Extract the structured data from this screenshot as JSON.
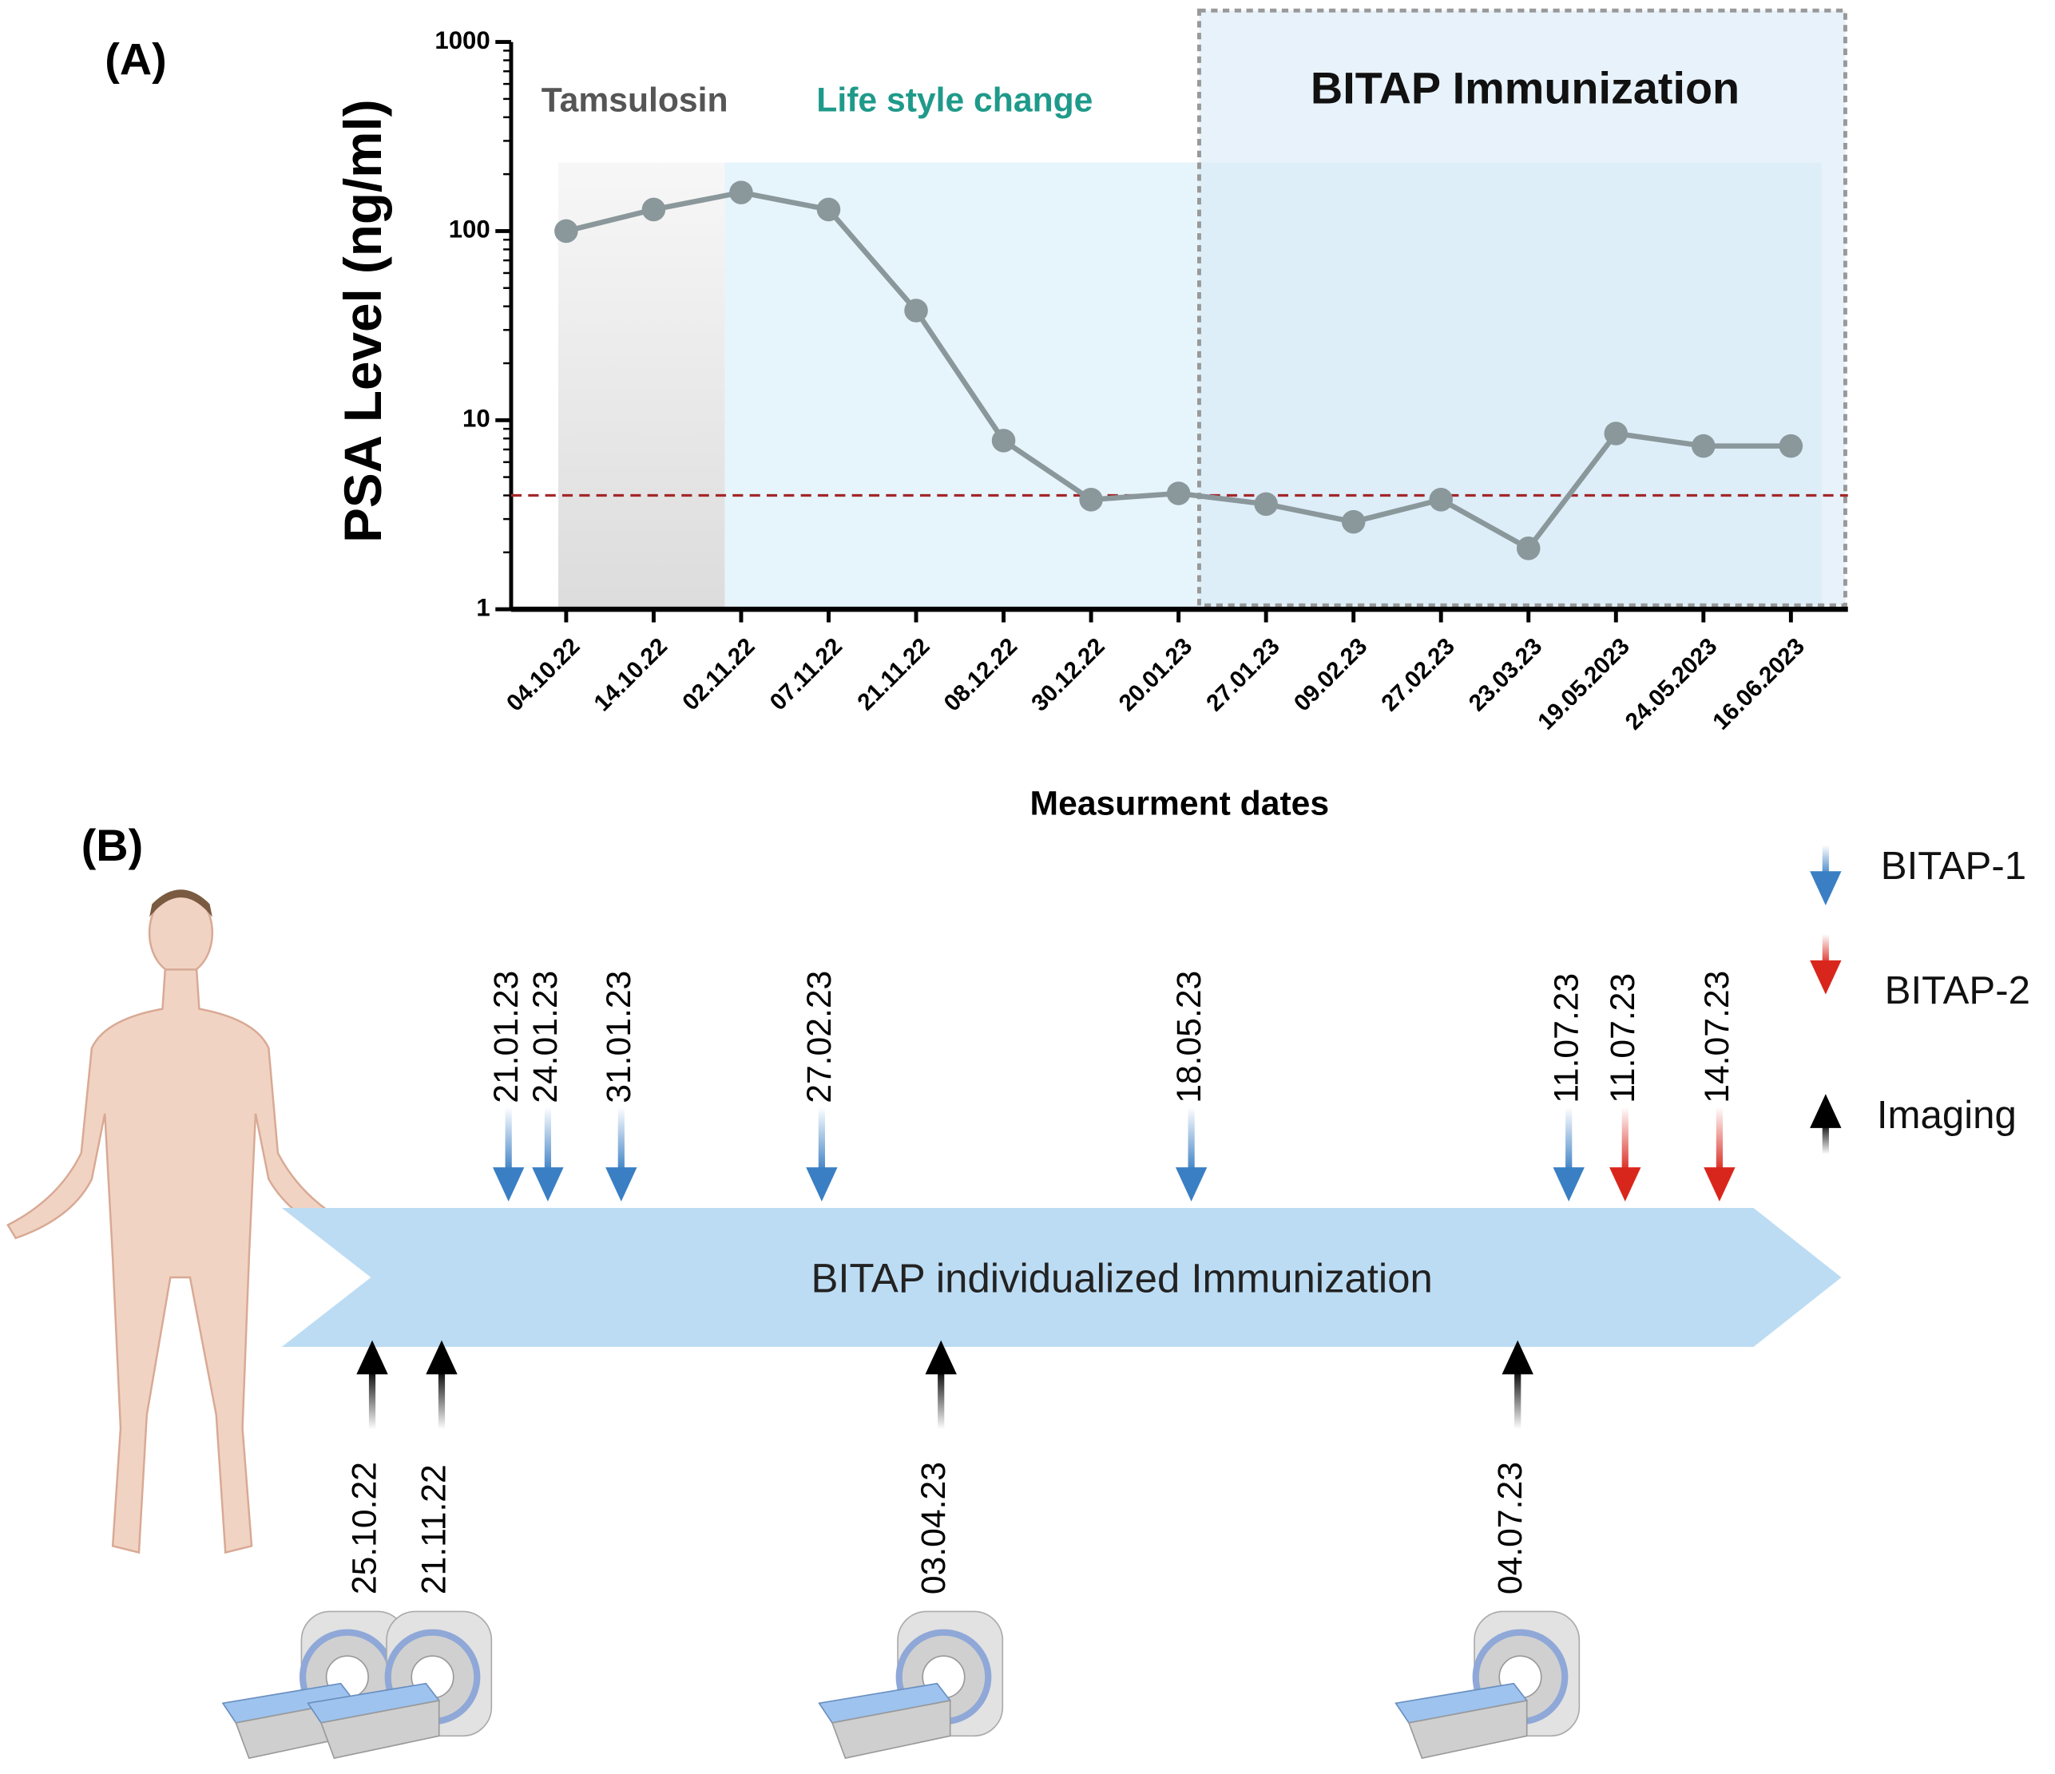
{
  "chart_data": {
    "type": "line",
    "panel_label": "(A)",
    "ylabel": "PSA Level (ng/ml)",
    "xlabel": "Measurment dates",
    "categories": [
      "04.10.22",
      "14.10.22",
      "02.11.22",
      "07.11.22",
      "21.11.22",
      "08.12.22",
      "30.12.22",
      "20.01.23",
      "27.01.23",
      "09.02.23",
      "27.02.23",
      "23.03.23",
      "19.05.2023",
      "24.05.2023",
      "16.06.2023"
    ],
    "values": [
      100,
      130,
      160,
      130,
      38,
      7.8,
      3.8,
      4.1,
      3.6,
      2.9,
      3.8,
      2.1,
      8.5,
      7.3,
      7.3
    ],
    "color": "#8a979b",
    "ylim": [
      1,
      1000
    ],
    "yticks": [
      1,
      10,
      100,
      1000
    ],
    "log_scale": true,
    "reference_line": 4,
    "reference_color": "#a3272a",
    "annotations": [
      {
        "text": "Tamsulosin",
        "color": "#555555"
      },
      {
        "text": "Life style change",
        "color": "#1f9a8a"
      },
      {
        "text": "BITAP Immunization",
        "color": "#111111"
      }
    ]
  },
  "timeline": {
    "panel_label": "(B)",
    "title": "BITAP individualized Immunization",
    "legend": [
      {
        "name": "BITAP-1",
        "color": "#3a7fc4",
        "dates": [
          "21.01.23",
          "24.01.23",
          "31.01.23",
          "27.02.23",
          "18.05.23",
          "11.07.23"
        ]
      },
      {
        "name": "BITAP-2",
        "color": "#d9261c",
        "dates": [
          "11.07.23",
          "14.07.23"
        ]
      },
      {
        "name": "Imaging",
        "color": "#000000",
        "dates": [
          "25.10.22",
          "21.11.22",
          "03.04.23",
          "04.07.23"
        ]
      }
    ]
  }
}
